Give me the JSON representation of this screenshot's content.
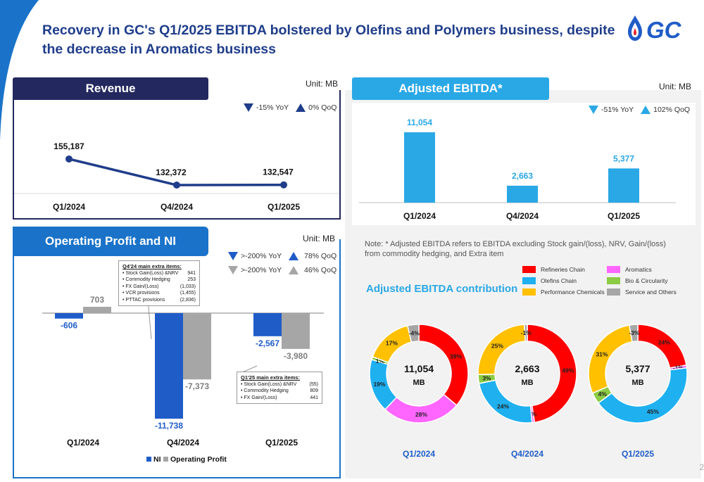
{
  "title": "Recovery in GC's Q1/2025 EBITDA bolstered by Olefins and Polymers business, despite the decrease in Aromatics business",
  "logo": {
    "text": "GC"
  },
  "colors": {
    "navy": "#1f3d8a",
    "dark_header": "#23285e",
    "sky": "#2aa8e6",
    "grey": "#a6a6a6",
    "blue_bar": "#1f5cc8"
  },
  "revenue": {
    "header": "Revenue",
    "unit": "Unit: MB",
    "yoy": "-15% YoY",
    "qoq": "0% QoQ",
    "chart_data": {
      "type": "line",
      "categories": [
        "Q1/2024",
        "Q4/2024",
        "Q1/2025"
      ],
      "values": [
        155187,
        132372,
        132547
      ],
      "labels": [
        "155,187",
        "132,372",
        "132,547"
      ]
    }
  },
  "ebitda": {
    "header": "Adjusted EBITDA*",
    "unit": "Unit: MB",
    "yoy": "-51% YoY",
    "qoq": "102% QoQ",
    "chart_data": {
      "type": "bar",
      "categories": [
        "Q1/2024",
        "Q4/2024",
        "Q1/2025"
      ],
      "values": [
        11054,
        2663,
        5377
      ],
      "labels": [
        "11,054",
        "2,663",
        "5,377"
      ]
    },
    "note": "Note: * Adjusted EBITDA refers to EBITDA excluding Stock gain/(loss), NRV, Gain/(loss) from commodity hedging, and Extra item"
  },
  "operating": {
    "header": "Operating Profit and NI",
    "unit": "Unit: MB",
    "legend_rows": [
      {
        "yoy": ">-200% YoY",
        "qoq": "78% QoQ"
      },
      {
        "yoy": ">-200% YoY",
        "qoq": "46% QoQ"
      }
    ],
    "box_q4": {
      "title": "Q4'24 main extra items:",
      "items": [
        {
          "label": "Stock Gain(Loss) &NRV",
          "value": "941"
        },
        {
          "label": "Commodity Hedging",
          "value": "253"
        },
        {
          "label": "FX Gain/(Loss)",
          "value": "(1,033)"
        },
        {
          "label": "VCR provisions",
          "value": "(1,455)"
        },
        {
          "label": "PTTAC provisions",
          "value": "(2,836)"
        }
      ]
    },
    "box_q1": {
      "title": "Q1'25  main extra items:",
      "items": [
        {
          "label": "Stock Gain(Loss) &NRV",
          "value": "(55)"
        },
        {
          "label": "Commodity Hedging",
          "value": "809"
        },
        {
          "label": "FX Gain/(Loss)",
          "value": "441"
        }
      ]
    },
    "chart_data": {
      "type": "bar",
      "categories": [
        "Q1/2024",
        "Q4/2024",
        "Q1/2025"
      ],
      "series": [
        {
          "name": "NI",
          "values": [
            -606,
            -11738,
            -2567
          ],
          "labels": [
            "-606",
            "-11,738",
            "-2,567"
          ],
          "color": "#1f5cc8"
        },
        {
          "name": "Operating Profit",
          "values": [
            703,
            -7373,
            -3980
          ],
          "labels": [
            "703",
            "-7,373",
            "-3,980"
          ],
          "color": "#a6a6a6"
        }
      ]
    }
  },
  "contribution": {
    "title": "Adjusted EBITDA contribution",
    "legend": [
      {
        "name": "Refineries Chain",
        "color": "#ff0000"
      },
      {
        "name": "Aromatics",
        "color": "#ff66ff"
      },
      {
        "name": "Olefins Chain",
        "color": "#1fb0f0"
      },
      {
        "name": "Bio & Circularity",
        "color": "#8ccc44"
      },
      {
        "name": "Performance Chemicals",
        "color": "#ffc000"
      },
      {
        "name": "Service and Others",
        "color": "#a6a6a6"
      }
    ],
    "chart_data": {
      "type": "pie",
      "donuts": [
        {
          "period": "Q1/2024",
          "center_value": "11,054",
          "center_unit": "MB",
          "slices": [
            {
              "segment": "Refineries Chain",
              "value": 39,
              "label": "39%"
            },
            {
              "segment": "Aromatics",
              "value": 28,
              "label": "28%"
            },
            {
              "segment": "Olefins Chain",
              "value": 19,
              "label": "19%"
            },
            {
              "segment": "Bio & Circularity",
              "value": 1,
              "label": "1%"
            },
            {
              "segment": "Performance Chemicals",
              "value": 17,
              "label": "17%"
            },
            {
              "segment": "Service and Others",
              "value": -4,
              "label": "-4%"
            }
          ]
        },
        {
          "period": "Q4/2024",
          "center_value": "2,663",
          "center_unit": "MB",
          "slices": [
            {
              "segment": "Refineries Chain",
              "value": 49,
              "label": "49%"
            },
            {
              "segment": "Aromatics",
              "value": 0,
              "label": "0%"
            },
            {
              "segment": "Olefins Chain",
              "value": 24,
              "label": "24%"
            },
            {
              "segment": "Bio & Circularity",
              "value": 3,
              "label": "3%"
            },
            {
              "segment": "Performance Chemicals",
              "value": 25,
              "label": "25%"
            },
            {
              "segment": "Service and Others",
              "value": -1,
              "label": "-1%"
            }
          ]
        },
        {
          "period": "Q1/2025",
          "center_value": "5,377",
          "center_unit": "MB",
          "slices": [
            {
              "segment": "Refineries Chain",
              "value": 24,
              "label": "24%"
            },
            {
              "segment": "Aromatics",
              "value": -1,
              "label": "-1%"
            },
            {
              "segment": "Olefins Chain",
              "value": 45,
              "label": "45%"
            },
            {
              "segment": "Bio & Circularity",
              "value": 4,
              "label": "4%"
            },
            {
              "segment": "Performance Chemicals",
              "value": 31,
              "label": "31%"
            },
            {
              "segment": "Service and Others",
              "value": -3,
              "label": "-3%"
            }
          ]
        }
      ]
    }
  },
  "page_number": "2"
}
